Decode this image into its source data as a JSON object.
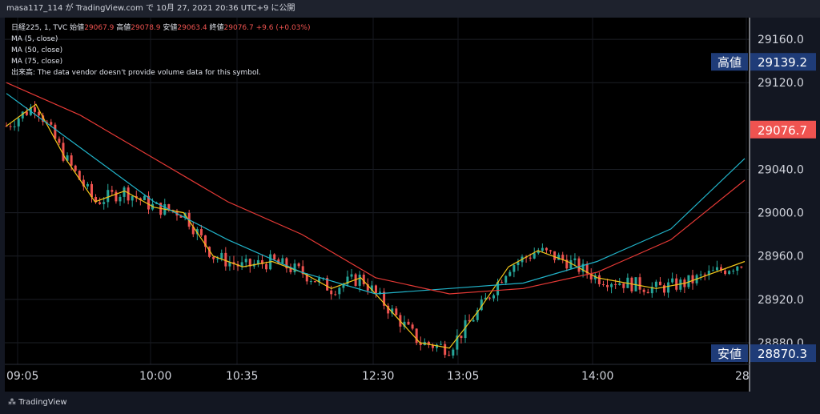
{
  "header": {
    "text": "masa117_114 が TradingView.com で 10月 27, 2021 20:36 UTC+9 に公開"
  },
  "legend": {
    "symbol": "日経225, 1, TVC",
    "open_label": "始値",
    "open": "29067.9",
    "high_label": "高値",
    "high": "29078.9",
    "low_label": "安値",
    "low": "29063.4",
    "close_label": "終値",
    "close": "29076.7",
    "change": "+9.6 (+0.03%)",
    "ma1": "MA (5, close)",
    "ma2": "MA (50, close)",
    "ma3": "MA (75, close)",
    "volume_note": "出来高: The data vendor doesn't provide volume data for this symbol."
  },
  "badges": {
    "high_label": "高値",
    "high_value": "29139.2",
    "low_label": "安値",
    "low_value": "28870.3",
    "last_value": "29076.7"
  },
  "footer": {
    "brand": "TradingView"
  },
  "colors": {
    "up": "#26a69a",
    "down": "#ef5350",
    "ma5": "#f0c419",
    "ma50": "#21b3c9",
    "ma75": "#e53935",
    "badge_bg": "#1f3c78",
    "last_bg": "#ef5350"
  },
  "chart_data": {
    "type": "line",
    "title": "日経225, 1, TVC",
    "ylim": [
      28860,
      29180
    ],
    "yticks": [
      29160,
      29120,
      29040,
      29000,
      28960,
      28920,
      28880
    ],
    "x_tick_labels": [
      "09:05",
      "10:00",
      "10:35",
      "12:30",
      "13:05",
      "14:00",
      "28"
    ],
    "series": [
      {
        "name": "MA (5, close)",
        "x": [
          0,
          4,
          8,
          12,
          16,
          20,
          24,
          28,
          32,
          36,
          40,
          44,
          48,
          52,
          56,
          60,
          64,
          68,
          72,
          76,
          80,
          84,
          88,
          92,
          96,
          100
        ],
        "values": [
          29080,
          29100,
          29050,
          29010,
          29020,
          29005,
          29000,
          28960,
          28950,
          28955,
          28945,
          28930,
          28940,
          28910,
          28880,
          28875,
          28910,
          28950,
          28965,
          28955,
          28940,
          28935,
          28930,
          28935,
          28945,
          28955
        ]
      },
      {
        "name": "MA (50, close)",
        "x": [
          0,
          10,
          20,
          30,
          40,
          50,
          60,
          70,
          80,
          90,
          100
        ],
        "values": [
          29110,
          29060,
          29010,
          28975,
          28945,
          28925,
          28930,
          28935,
          28955,
          28985,
          29050
        ]
      },
      {
        "name": "MA (75, close)",
        "x": [
          0,
          10,
          20,
          30,
          40,
          50,
          60,
          70,
          80,
          90,
          100
        ],
        "values": [
          29120,
          29090,
          29050,
          29010,
          28980,
          28940,
          28925,
          28930,
          28945,
          28975,
          29030
        ]
      }
    ]
  }
}
